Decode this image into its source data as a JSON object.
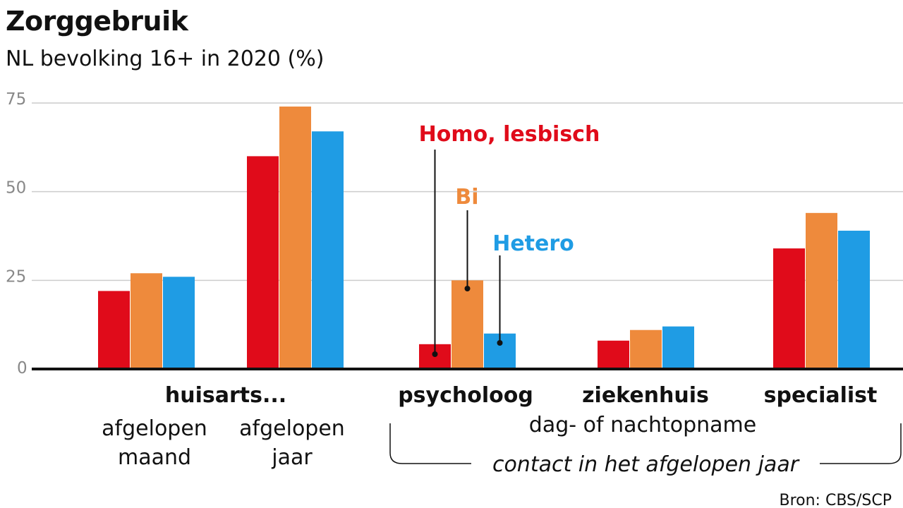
{
  "title": "Zorggebruik",
  "subtitle": "NL bevolking 16+ in 2020 (%)",
  "source": "Bron: CBS/SCP",
  "colors": {
    "homo": "#e00b1a",
    "bi": "#ee8a3c",
    "hetero": "#1f9ce4",
    "grid": "#cccccc",
    "axis": "#111111"
  },
  "labels": {
    "huisarts": "huisarts...",
    "afgelopen_maand_1": "afgelopen",
    "afgelopen_maand_2": "maand",
    "afgelopen_jaar_1": "afgelopen",
    "afgelopen_jaar_2": "jaar",
    "psycholoog": "psycholoog",
    "ziekenhuis": "ziekenhuis",
    "specialist": "specialist",
    "dag_nacht": "dag- of nachtopname",
    "contact": "contact in het afgelopen jaar"
  },
  "chart_data": {
    "type": "bar",
    "categories": [
      "huisarts... afgelopen maand",
      "huisarts... afgelopen jaar",
      "psycholoog",
      "ziekenhuis dag- of nachtopname",
      "specialist"
    ],
    "series": [
      {
        "name": "Homo, lesbisch",
        "values": [
          22,
          60,
          7,
          8,
          34
        ]
      },
      {
        "name": "Bi",
        "values": [
          27,
          74,
          25,
          11,
          44
        ]
      },
      {
        "name": "Hetero",
        "values": [
          26,
          67,
          10,
          12,
          39
        ]
      }
    ],
    "yticks": [
      "75",
      "50",
      "25",
      "0"
    ],
    "ylim": [
      0,
      75
    ],
    "grid": true
  }
}
